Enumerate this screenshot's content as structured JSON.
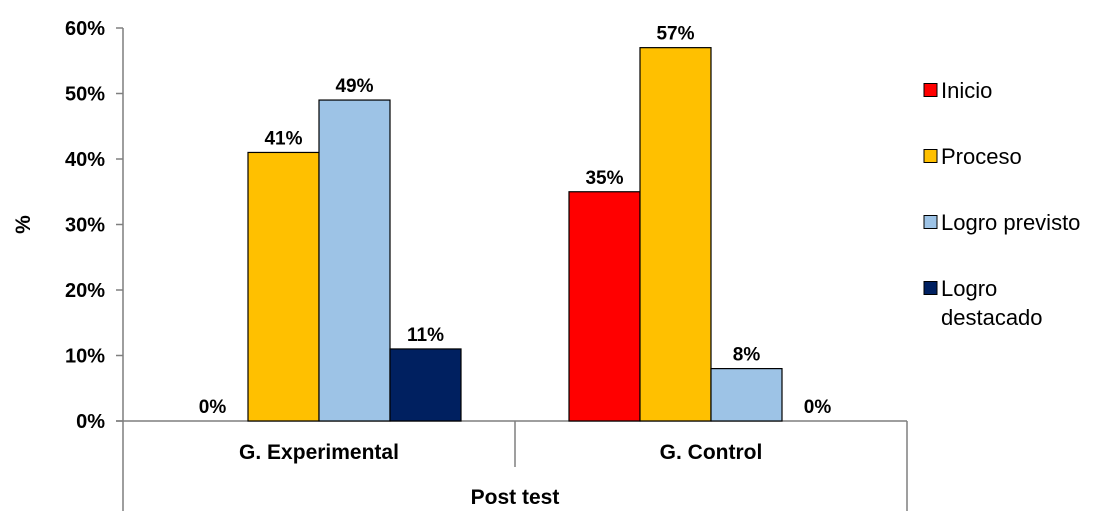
{
  "chart_data": {
    "type": "bar",
    "ylabel": "%",
    "xlabel": "Post test",
    "ylim": [
      0,
      60
    ],
    "ytick_step": 10,
    "ytick_suffix": "%",
    "categories": [
      "G. Experimental",
      "G. Control"
    ],
    "series": [
      {
        "name": "Inicio",
        "color": "#FF0000",
        "values": [
          0,
          35
        ],
        "labels": [
          "0%",
          "35%"
        ]
      },
      {
        "name": "Proceso",
        "color": "#FFC000",
        "values": [
          41,
          57
        ],
        "labels": [
          "41%",
          "57%"
        ]
      },
      {
        "name": "Logro previsto",
        "color": "#9DC3E6",
        "values": [
          49,
          8
        ],
        "labels": [
          "49%",
          "8%"
        ]
      },
      {
        "name": "Logro destacado",
        "color": "#002060",
        "values": [
          11,
          0
        ],
        "labels": [
          "11%",
          "0%"
        ]
      }
    ],
    "grid": false,
    "legend_position": "right"
  }
}
